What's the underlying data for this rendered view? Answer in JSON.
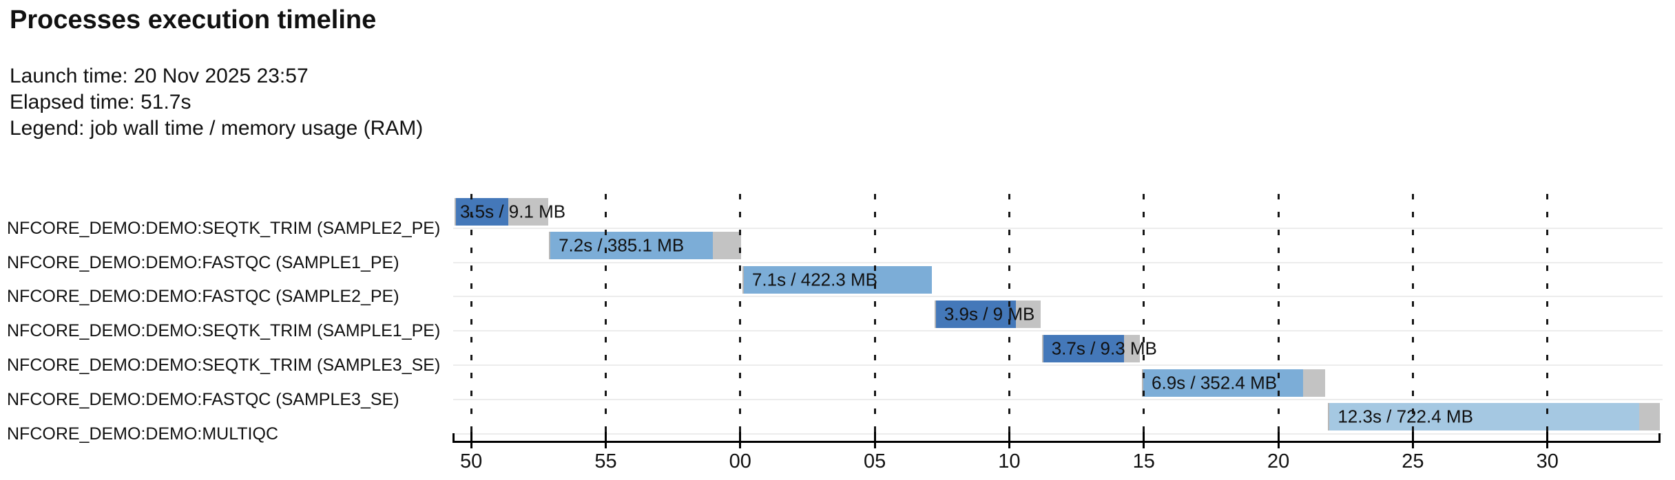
{
  "title": "Processes execution timeline",
  "meta": {
    "launch_time": "Launch time: 20 Nov 2025 23:57",
    "elapsed_time": "Elapsed time: 51.7s",
    "legend": "Legend: job wall time / memory usage (RAM)"
  },
  "colors": {
    "bar_dark_blue": "#4478b9",
    "bar_medium_blue": "#7cadd7",
    "bar_light_blue": "#a5c8e2",
    "bar_overflow_gray": "#c3c3c3",
    "row_separator": "#ececec",
    "axis_black": "#000000",
    "text_black": "#111111"
  },
  "chart_data": {
    "type": "gantt-timeline",
    "title": "Processes execution timeline",
    "time_unit": "seconds (clock seconds, wrapping past the minute)",
    "span_s": 44.85,
    "legend_note": "each bar label = job wall time / memory usage (RAM); colored segment = run, gray tail = overhead",
    "ticks": [
      {
        "label": "50",
        "t": 0.67
      },
      {
        "label": "55",
        "t": 5.67
      },
      {
        "label": "00",
        "t": 10.67
      },
      {
        "label": "05",
        "t": 15.67
      },
      {
        "label": "10",
        "t": 20.67
      },
      {
        "label": "15",
        "t": 25.67
      },
      {
        "label": "20",
        "t": 30.67
      },
      {
        "label": "25",
        "t": 35.67
      },
      {
        "label": "30",
        "t": 40.67
      }
    ],
    "processes": [
      {
        "name": "NFCORE_DEMO:DEMO:SEQTK_TRIM (SAMPLE2_PE)",
        "bar_label": "3.5s / 9.1 MB",
        "wall_time_s": 3.5,
        "memory": "9.1 MB",
        "start_t": 0.05,
        "run_t": 1.97,
        "extra_t": 1.51,
        "shade": "dark"
      },
      {
        "name": "NFCORE_DEMO:DEMO:FASTQC (SAMPLE1_PE)",
        "bar_label": "7.2s / 385.1 MB",
        "wall_time_s": 7.2,
        "memory": "385.1 MB",
        "start_t": 3.56,
        "run_t": 6.08,
        "extra_t": 1.07,
        "shade": "medium"
      },
      {
        "name": "NFCORE_DEMO:DEMO:FASTQC (SAMPLE2_PE)",
        "bar_label": "7.1s / 422.3 MB",
        "wall_time_s": 7.1,
        "memory": "422.3 MB",
        "start_t": 10.75,
        "run_t": 7.04,
        "extra_t": 0.0,
        "shade": "medium"
      },
      {
        "name": "NFCORE_DEMO:DEMO:SEQTK_TRIM (SAMPLE1_PE)",
        "bar_label": "3.9s / 9 MB",
        "wall_time_s": 3.9,
        "memory": "9 MB",
        "start_t": 17.89,
        "run_t": 3.02,
        "extra_t": 0.92,
        "shade": "dark"
      },
      {
        "name": "NFCORE_DEMO:DEMO:SEQTK_TRIM (SAMPLE3_SE)",
        "bar_label": "3.7s / 9.3 MB",
        "wall_time_s": 3.7,
        "memory": "9.3 MB",
        "start_t": 21.88,
        "run_t": 3.05,
        "extra_t": 0.58,
        "shade": "dark"
      },
      {
        "name": "NFCORE_DEMO:DEMO:FASTQC (SAMPLE3_SE)",
        "bar_label": "6.9s / 352.4 MB",
        "wall_time_s": 6.9,
        "memory": "352.4 MB",
        "start_t": 25.6,
        "run_t": 5.99,
        "extra_t": 0.82,
        "shade": "medium"
      },
      {
        "name": "NFCORE_DEMO:DEMO:MULTIQC",
        "bar_label": "12.3s / 722.4 MB",
        "wall_time_s": 12.3,
        "memory": "722.4 MB",
        "start_t": 32.52,
        "run_t": 11.56,
        "extra_t": 0.77,
        "shade": "light"
      }
    ]
  }
}
